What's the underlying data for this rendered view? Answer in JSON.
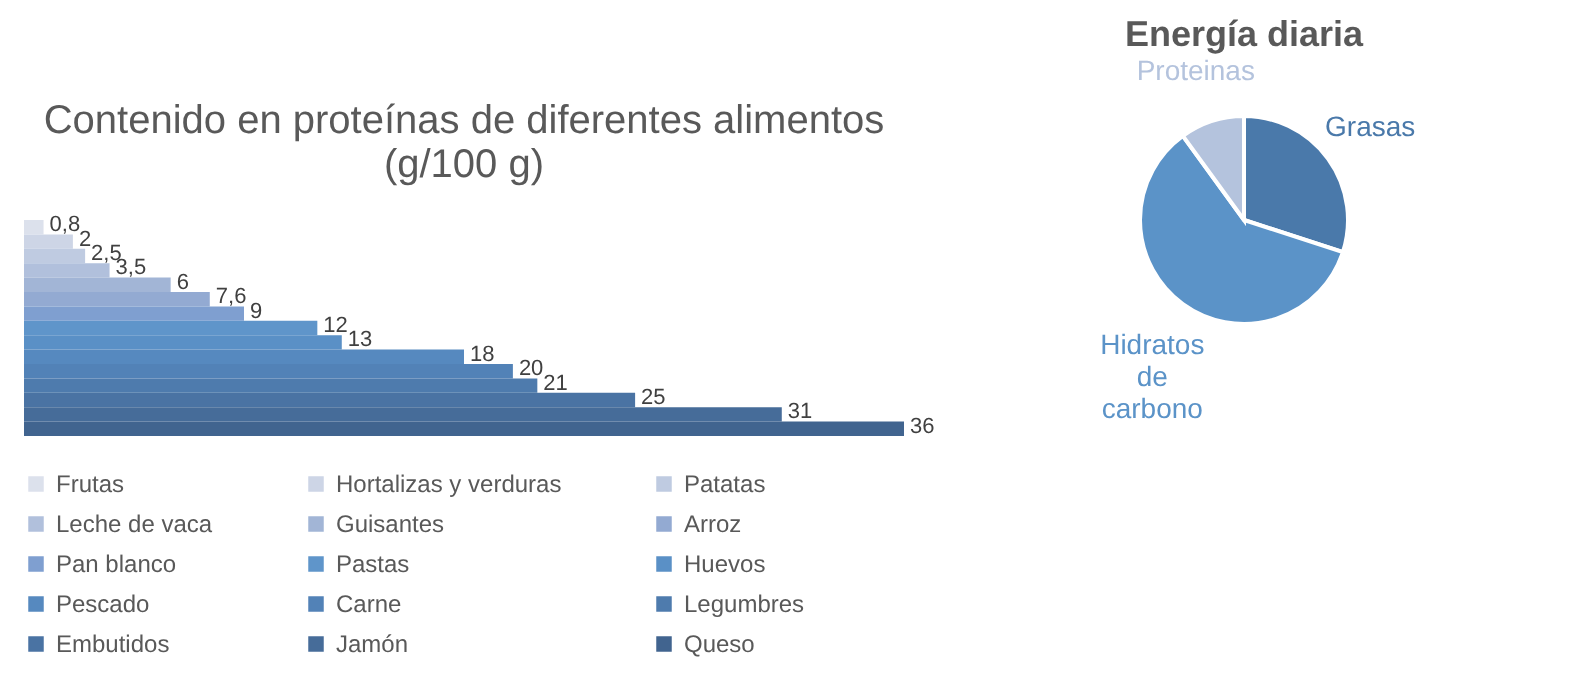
{
  "chart_data": [
    {
      "type": "bar",
      "title": "Contenido en proteínas de diferentes alimentos\n(g/100 g)",
      "orientation": "horizontal",
      "categories": [
        null
      ],
      "legend": "bottom",
      "series": [
        {
          "name": "Frutas",
          "color": "#dce1ec",
          "values": [
            0.8
          ],
          "value_labels": [
            "0,8"
          ]
        },
        {
          "name": "Hortalizas y verduras",
          "color": "#cdd5e6",
          "values": [
            2
          ],
          "value_labels": [
            "2"
          ]
        },
        {
          "name": "Patatas",
          "color": "#bfcbe1",
          "values": [
            2.5
          ],
          "value_labels": [
            "2,5"
          ]
        },
        {
          "name": "Leche de vaca",
          "color": "#b1c0dc",
          "values": [
            3.5
          ],
          "value_labels": [
            "3,5"
          ]
        },
        {
          "name": "Guisantes",
          "color": "#a2b5d6",
          "values": [
            6
          ],
          "value_labels": [
            "6"
          ]
        },
        {
          "name": "Arroz",
          "color": "#93aad2",
          "values": [
            7.6
          ],
          "value_labels": [
            "7,6"
          ]
        },
        {
          "name": "Pan blanco",
          "color": "#7f9fd0",
          "values": [
            9
          ],
          "value_labels": [
            "9"
          ]
        },
        {
          "name": "Pastas",
          "color": "#5f95ca",
          "values": [
            12
          ],
          "value_labels": [
            "12"
          ]
        },
        {
          "name": "Huevos",
          "color": "#5a90c6",
          "values": [
            13
          ],
          "value_labels": [
            "13"
          ]
        },
        {
          "name": "Pescado",
          "color": "#5689bf",
          "values": [
            18
          ],
          "value_labels": [
            "18"
          ]
        },
        {
          "name": "Carne",
          "color": "#5282b7",
          "values": [
            20
          ],
          "value_labels": [
            "20"
          ]
        },
        {
          "name": "Legumbres",
          "color": "#4e7bad",
          "values": [
            21
          ],
          "value_labels": [
            "21"
          ]
        },
        {
          "name": "Embutidos",
          "color": "#4a73a3",
          "values": [
            25
          ],
          "value_labels": [
            "25"
          ]
        },
        {
          "name": "Jamón",
          "color": "#466c99",
          "values": [
            31
          ],
          "value_labels": [
            "31"
          ]
        },
        {
          "name": "Queso",
          "color": "#41648f",
          "values": [
            36
          ],
          "value_labels": [
            "36"
          ]
        }
      ]
    },
    {
      "type": "pie",
      "title": "Energía diaria",
      "categories": [
        "Grasas",
        "Hidratos de carbono",
        "Proteinas"
      ],
      "values": [
        30,
        60,
        10
      ],
      "colors": [
        "#4a79aa",
        "#5b93c8",
        "#b4c3dd"
      ]
    }
  ]
}
